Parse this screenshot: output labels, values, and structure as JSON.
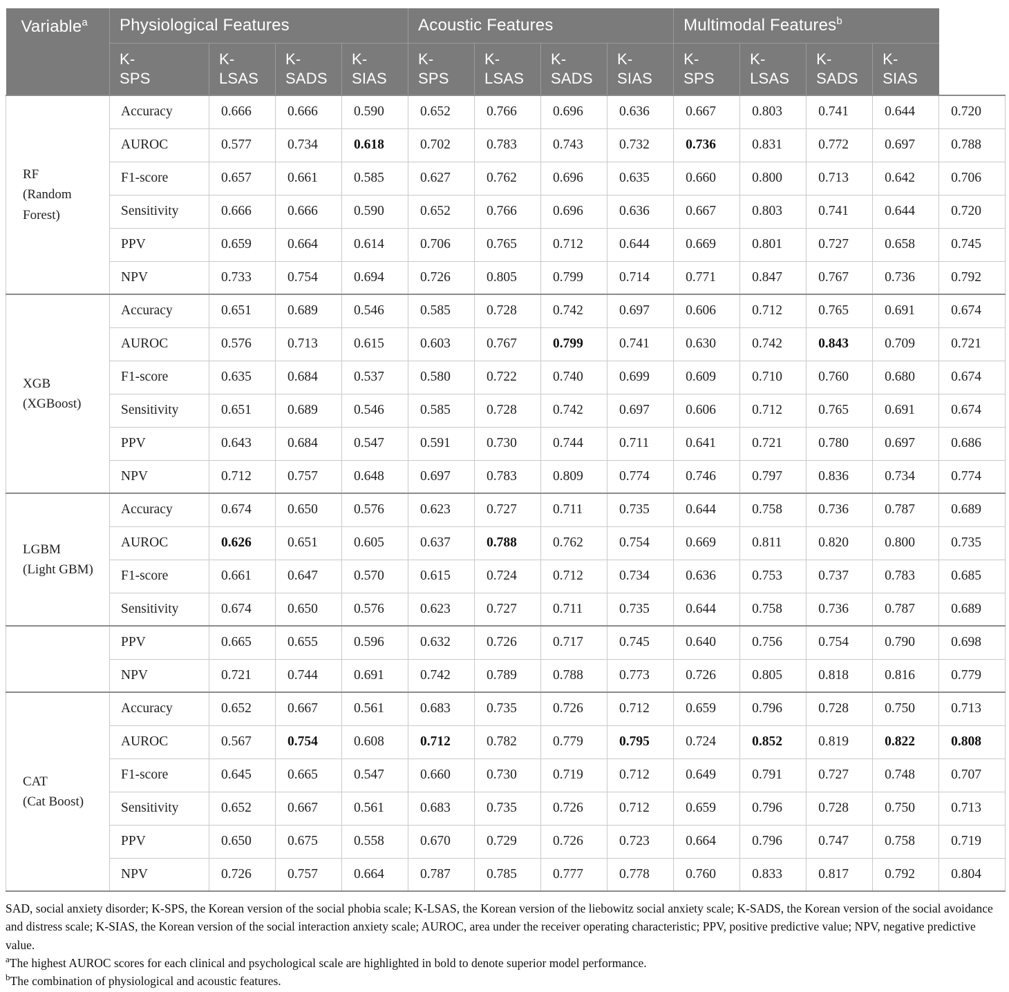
{
  "header": {
    "variable": {
      "label": "Variable",
      "sup": "a"
    },
    "feature_groups": [
      {
        "label": "Physiological Features",
        "sup": ""
      },
      {
        "label": "Acoustic Features",
        "sup": ""
      },
      {
        "label": "Multimodal Features",
        "sup": "b"
      }
    ],
    "scale_columns": [
      "K-SPS",
      "K-LSAS",
      "K-SADS",
      "K-SIAS"
    ]
  },
  "model_groups": [
    {
      "model": "RF",
      "model_detail": "(Random Forest)",
      "rows": [
        {
          "metric": "Accuracy",
          "values": [
            "0.666",
            "0.666",
            "0.590",
            "0.652",
            "0.766",
            "0.696",
            "0.636",
            "0.667",
            "0.803",
            "0.741",
            "0.644",
            "0.720"
          ],
          "bold": []
        },
        {
          "metric": "AUROC",
          "values": [
            "0.577",
            "0.734",
            "0.618",
            "0.702",
            "0.783",
            "0.743",
            "0.732",
            "0.736",
            "0.831",
            "0.772",
            "0.697",
            "0.788"
          ],
          "bold": [
            2,
            7
          ]
        },
        {
          "metric": "F1-score",
          "values": [
            "0.657",
            "0.661",
            "0.585",
            "0.627",
            "0.762",
            "0.696",
            "0.635",
            "0.660",
            "0.800",
            "0.713",
            "0.642",
            "0.706"
          ],
          "bold": []
        },
        {
          "metric": "Sensitivity",
          "values": [
            "0.666",
            "0.666",
            "0.590",
            "0.652",
            "0.766",
            "0.696",
            "0.636",
            "0.667",
            "0.803",
            "0.741",
            "0.644",
            "0.720"
          ],
          "bold": []
        },
        {
          "metric": "PPV",
          "values": [
            "0.659",
            "0.664",
            "0.614",
            "0.706",
            "0.765",
            "0.712",
            "0.644",
            "0.669",
            "0.801",
            "0.727",
            "0.658",
            "0.745"
          ],
          "bold": []
        },
        {
          "metric": "NPV",
          "values": [
            "0.733",
            "0.754",
            "0.694",
            "0.726",
            "0.805",
            "0.799",
            "0.714",
            "0.771",
            "0.847",
            "0.767",
            "0.736",
            "0.792"
          ],
          "bold": []
        }
      ]
    },
    {
      "model": "XGB",
      "model_detail": "(XGBoost)",
      "rows": [
        {
          "metric": "Accuracy",
          "values": [
            "0.651",
            "0.689",
            "0.546",
            "0.585",
            "0.728",
            "0.742",
            "0.697",
            "0.606",
            "0.712",
            "0.765",
            "0.691",
            "0.674"
          ],
          "bold": []
        },
        {
          "metric": "AUROC",
          "values": [
            "0.576",
            "0.713",
            "0.615",
            "0.603",
            "0.767",
            "0.799",
            "0.741",
            "0.630",
            "0.742",
            "0.843",
            "0.709",
            "0.721"
          ],
          "bold": [
            5,
            9
          ]
        },
        {
          "metric": "F1-score",
          "values": [
            "0.635",
            "0.684",
            "0.537",
            "0.580",
            "0.722",
            "0.740",
            "0.699",
            "0.609",
            "0.710",
            "0.760",
            "0.680",
            "0.674"
          ],
          "bold": []
        },
        {
          "metric": "Sensitivity",
          "values": [
            "0.651",
            "0.689",
            "0.546",
            "0.585",
            "0.728",
            "0.742",
            "0.697",
            "0.606",
            "0.712",
            "0.765",
            "0.691",
            "0.674"
          ],
          "bold": []
        },
        {
          "metric": "PPV",
          "values": [
            "0.643",
            "0.684",
            "0.547",
            "0.591",
            "0.730",
            "0.744",
            "0.711",
            "0.641",
            "0.721",
            "0.780",
            "0.697",
            "0.686"
          ],
          "bold": []
        },
        {
          "metric": "NPV",
          "values": [
            "0.712",
            "0.757",
            "0.648",
            "0.697",
            "0.783",
            "0.809",
            "0.774",
            "0.746",
            "0.797",
            "0.836",
            "0.734",
            "0.774"
          ],
          "bold": []
        }
      ]
    },
    {
      "model": "LGBM",
      "model_detail": "(Light GBM)",
      "rows": [
        {
          "metric": "Accuracy",
          "values": [
            "0.674",
            "0.650",
            "0.576",
            "0.623",
            "0.727",
            "0.711",
            "0.735",
            "0.644",
            "0.758",
            "0.736",
            "0.787",
            "0.689"
          ],
          "bold": []
        },
        {
          "metric": "AUROC",
          "values": [
            "0.626",
            "0.651",
            "0.605",
            "0.637",
            "0.788",
            "0.762",
            "0.754",
            "0.669",
            "0.811",
            "0.820",
            "0.800",
            "0.735"
          ],
          "bold": [
            0,
            4
          ]
        },
        {
          "metric": "F1-score",
          "values": [
            "0.661",
            "0.647",
            "0.570",
            "0.615",
            "0.724",
            "0.712",
            "0.734",
            "0.636",
            "0.753",
            "0.737",
            "0.783",
            "0.685"
          ],
          "bold": []
        },
        {
          "metric": "Sensitivity",
          "values": [
            "0.674",
            "0.650",
            "0.576",
            "0.623",
            "0.727",
            "0.711",
            "0.735",
            "0.644",
            "0.758",
            "0.736",
            "0.787",
            "0.689"
          ],
          "bold": []
        }
      ]
    },
    {
      "model": "",
      "model_detail": "",
      "rows": [
        {
          "metric": "PPV",
          "values": [
            "0.665",
            "0.655",
            "0.596",
            "0.632",
            "0.726",
            "0.717",
            "0.745",
            "0.640",
            "0.756",
            "0.754",
            "0.790",
            "0.698"
          ],
          "bold": []
        },
        {
          "metric": "NPV",
          "values": [
            "0.721",
            "0.744",
            "0.691",
            "0.742",
            "0.789",
            "0.788",
            "0.773",
            "0.726",
            "0.805",
            "0.818",
            "0.816",
            "0.779"
          ],
          "bold": []
        }
      ]
    },
    {
      "model": "CAT",
      "model_detail": "(Cat Boost)",
      "rows": [
        {
          "metric": "Accuracy",
          "values": [
            "0.652",
            "0.667",
            "0.561",
            "0.683",
            "0.735",
            "0.726",
            "0.712",
            "0.659",
            "0.796",
            "0.728",
            "0.750",
            "0.713"
          ],
          "bold": []
        },
        {
          "metric": "AUROC",
          "values": [
            "0.567",
            "0.754",
            "0.608",
            "0.712",
            "0.782",
            "0.779",
            "0.795",
            "0.724",
            "0.852",
            "0.819",
            "0.822",
            "0.808"
          ],
          "bold": [
            1,
            3,
            6,
            8,
            10,
            11
          ]
        },
        {
          "metric": "F1-score",
          "values": [
            "0.645",
            "0.665",
            "0.547",
            "0.660",
            "0.730",
            "0.719",
            "0.712",
            "0.649",
            "0.791",
            "0.727",
            "0.748",
            "0.707"
          ],
          "bold": []
        },
        {
          "metric": "Sensitivity",
          "values": [
            "0.652",
            "0.667",
            "0.561",
            "0.683",
            "0.735",
            "0.726",
            "0.712",
            "0.659",
            "0.796",
            "0.728",
            "0.750",
            "0.713"
          ],
          "bold": []
        },
        {
          "metric": "PPV",
          "values": [
            "0.650",
            "0.675",
            "0.558",
            "0.670",
            "0.729",
            "0.726",
            "0.723",
            "0.664",
            "0.796",
            "0.747",
            "0.758",
            "0.719"
          ],
          "bold": []
        },
        {
          "metric": "NPV",
          "values": [
            "0.726",
            "0.757",
            "0.664",
            "0.787",
            "0.785",
            "0.777",
            "0.778",
            "0.760",
            "0.833",
            "0.817",
            "0.792",
            "0.804"
          ],
          "bold": []
        }
      ]
    }
  ],
  "footnotes": {
    "abbreviations": "SAD, social anxiety disorder; K-SPS, the Korean version of the social phobia scale; K-LSAS, the Korean version of the liebowitz social anxiety scale; K-SADS, the Korean version of the social avoidance and distress scale; K-SIAS, the Korean version of the social interaction anxiety scale; AUROC, area under the receiver operating characteristic; PPV, positive predictive value; NPV, negative predictive value.",
    "note_a": {
      "sup": "a",
      "text": "The highest AUROC scores for each clinical and psychological scale are highlighted in bold to denote superior model performance."
    },
    "note_b": {
      "sup": "b",
      "text": "The combination of physiological and acoustic features."
    }
  },
  "colors": {
    "header_bg": "#7b7b7b",
    "header_line": "#9b9b9b",
    "grid_line": "#c9c9c9",
    "group_line": "#8a8a8a",
    "text": "#222222"
  }
}
